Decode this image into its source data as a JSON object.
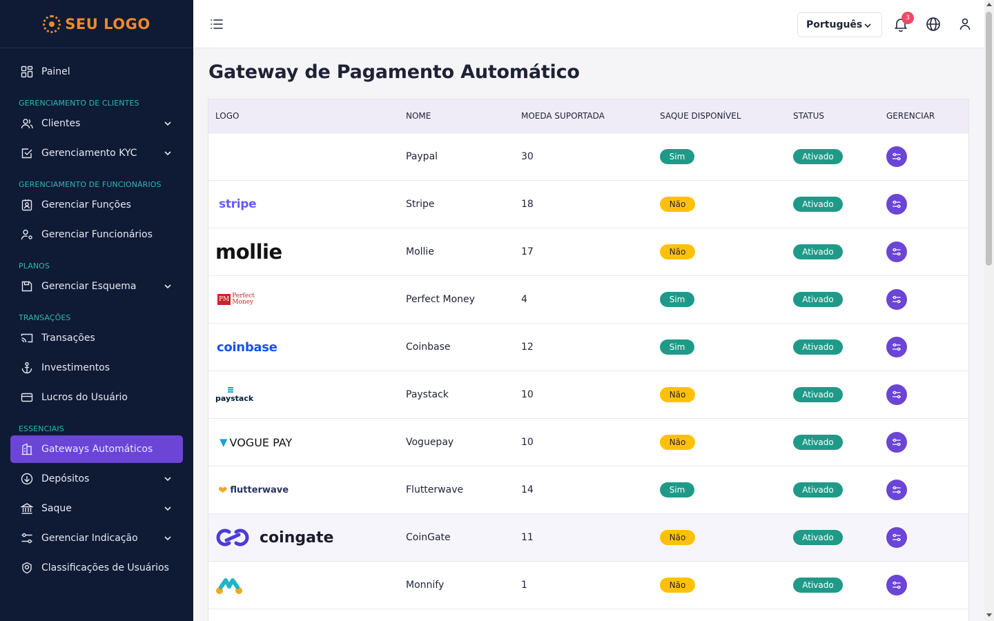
{
  "sidebar": {
    "logo_text": "SEU LOGO",
    "items": {
      "painel": "Painel",
      "clientes": "Clientes",
      "kyc": "Gerenciamento KYC",
      "funcoes": "Gerenciar Funções",
      "funcionarios": "Gerenciar Funcionários",
      "esquema": "Gerenciar Esquema",
      "transacoes": "Transações",
      "investimentos": "Investimentos",
      "lucros": "Lucros do Usuário",
      "gateways": "Gateways Automáticos",
      "depositos": "Depósitos",
      "saque": "Saque",
      "indicacao": "Gerenciar Indicação",
      "classificacoes": "Classificações de Usuários"
    },
    "sections": {
      "clientes": "GERENCIAMENTO DE CLIENTES",
      "funcionarios": "GERENCIAMENTO DE FUNCIONÁRIOS",
      "planos": "PLANOS",
      "transacoes": "TRANSAÇÕES",
      "essenciais": "ESSENCIAIS"
    }
  },
  "topbar": {
    "language": "Português",
    "notification_count": "3"
  },
  "page": {
    "title": "Gateway de Pagamento Automático"
  },
  "table": {
    "headers": {
      "logo": "LOGO",
      "nome": "NOME",
      "moeda": "MOEDA SUPORTADA",
      "saque": "SAQUE DISPONÍVEL",
      "status": "STATUS",
      "gerenciar": "GERENCIAR"
    },
    "rows": [
      {
        "logo": "",
        "nome": "Paypal",
        "moeda": "30",
        "saque": "Sim",
        "status": "Ativado"
      },
      {
        "logo": "stripe",
        "nome": "Stripe",
        "moeda": "18",
        "saque": "Não",
        "status": "Ativado"
      },
      {
        "logo": "mollie",
        "nome": "Mollie",
        "moeda": "17",
        "saque": "Não",
        "status": "Ativado"
      },
      {
        "logo": "Perfect Money",
        "nome": "Perfect Money",
        "moeda": "4",
        "saque": "Sim",
        "status": "Ativado"
      },
      {
        "logo": "coinbase",
        "nome": "Coinbase",
        "moeda": "12",
        "saque": "Sim",
        "status": "Ativado"
      },
      {
        "logo": "paystack",
        "nome": "Paystack",
        "moeda": "10",
        "saque": "Não",
        "status": "Ativado"
      },
      {
        "logo": "VOGUE PAY",
        "nome": "Voguepay",
        "moeda": "10",
        "saque": "Não",
        "status": "Ativado"
      },
      {
        "logo": "flutterwave",
        "nome": "Flutterwave",
        "moeda": "14",
        "saque": "Sim",
        "status": "Ativado"
      },
      {
        "logo": "coingate",
        "nome": "CoinGate",
        "moeda": "11",
        "saque": "Não",
        "status": "Ativado"
      },
      {
        "logo": "",
        "nome": "Monnify",
        "moeda": "1",
        "saque": "Não",
        "status": "Ativado"
      }
    ]
  }
}
